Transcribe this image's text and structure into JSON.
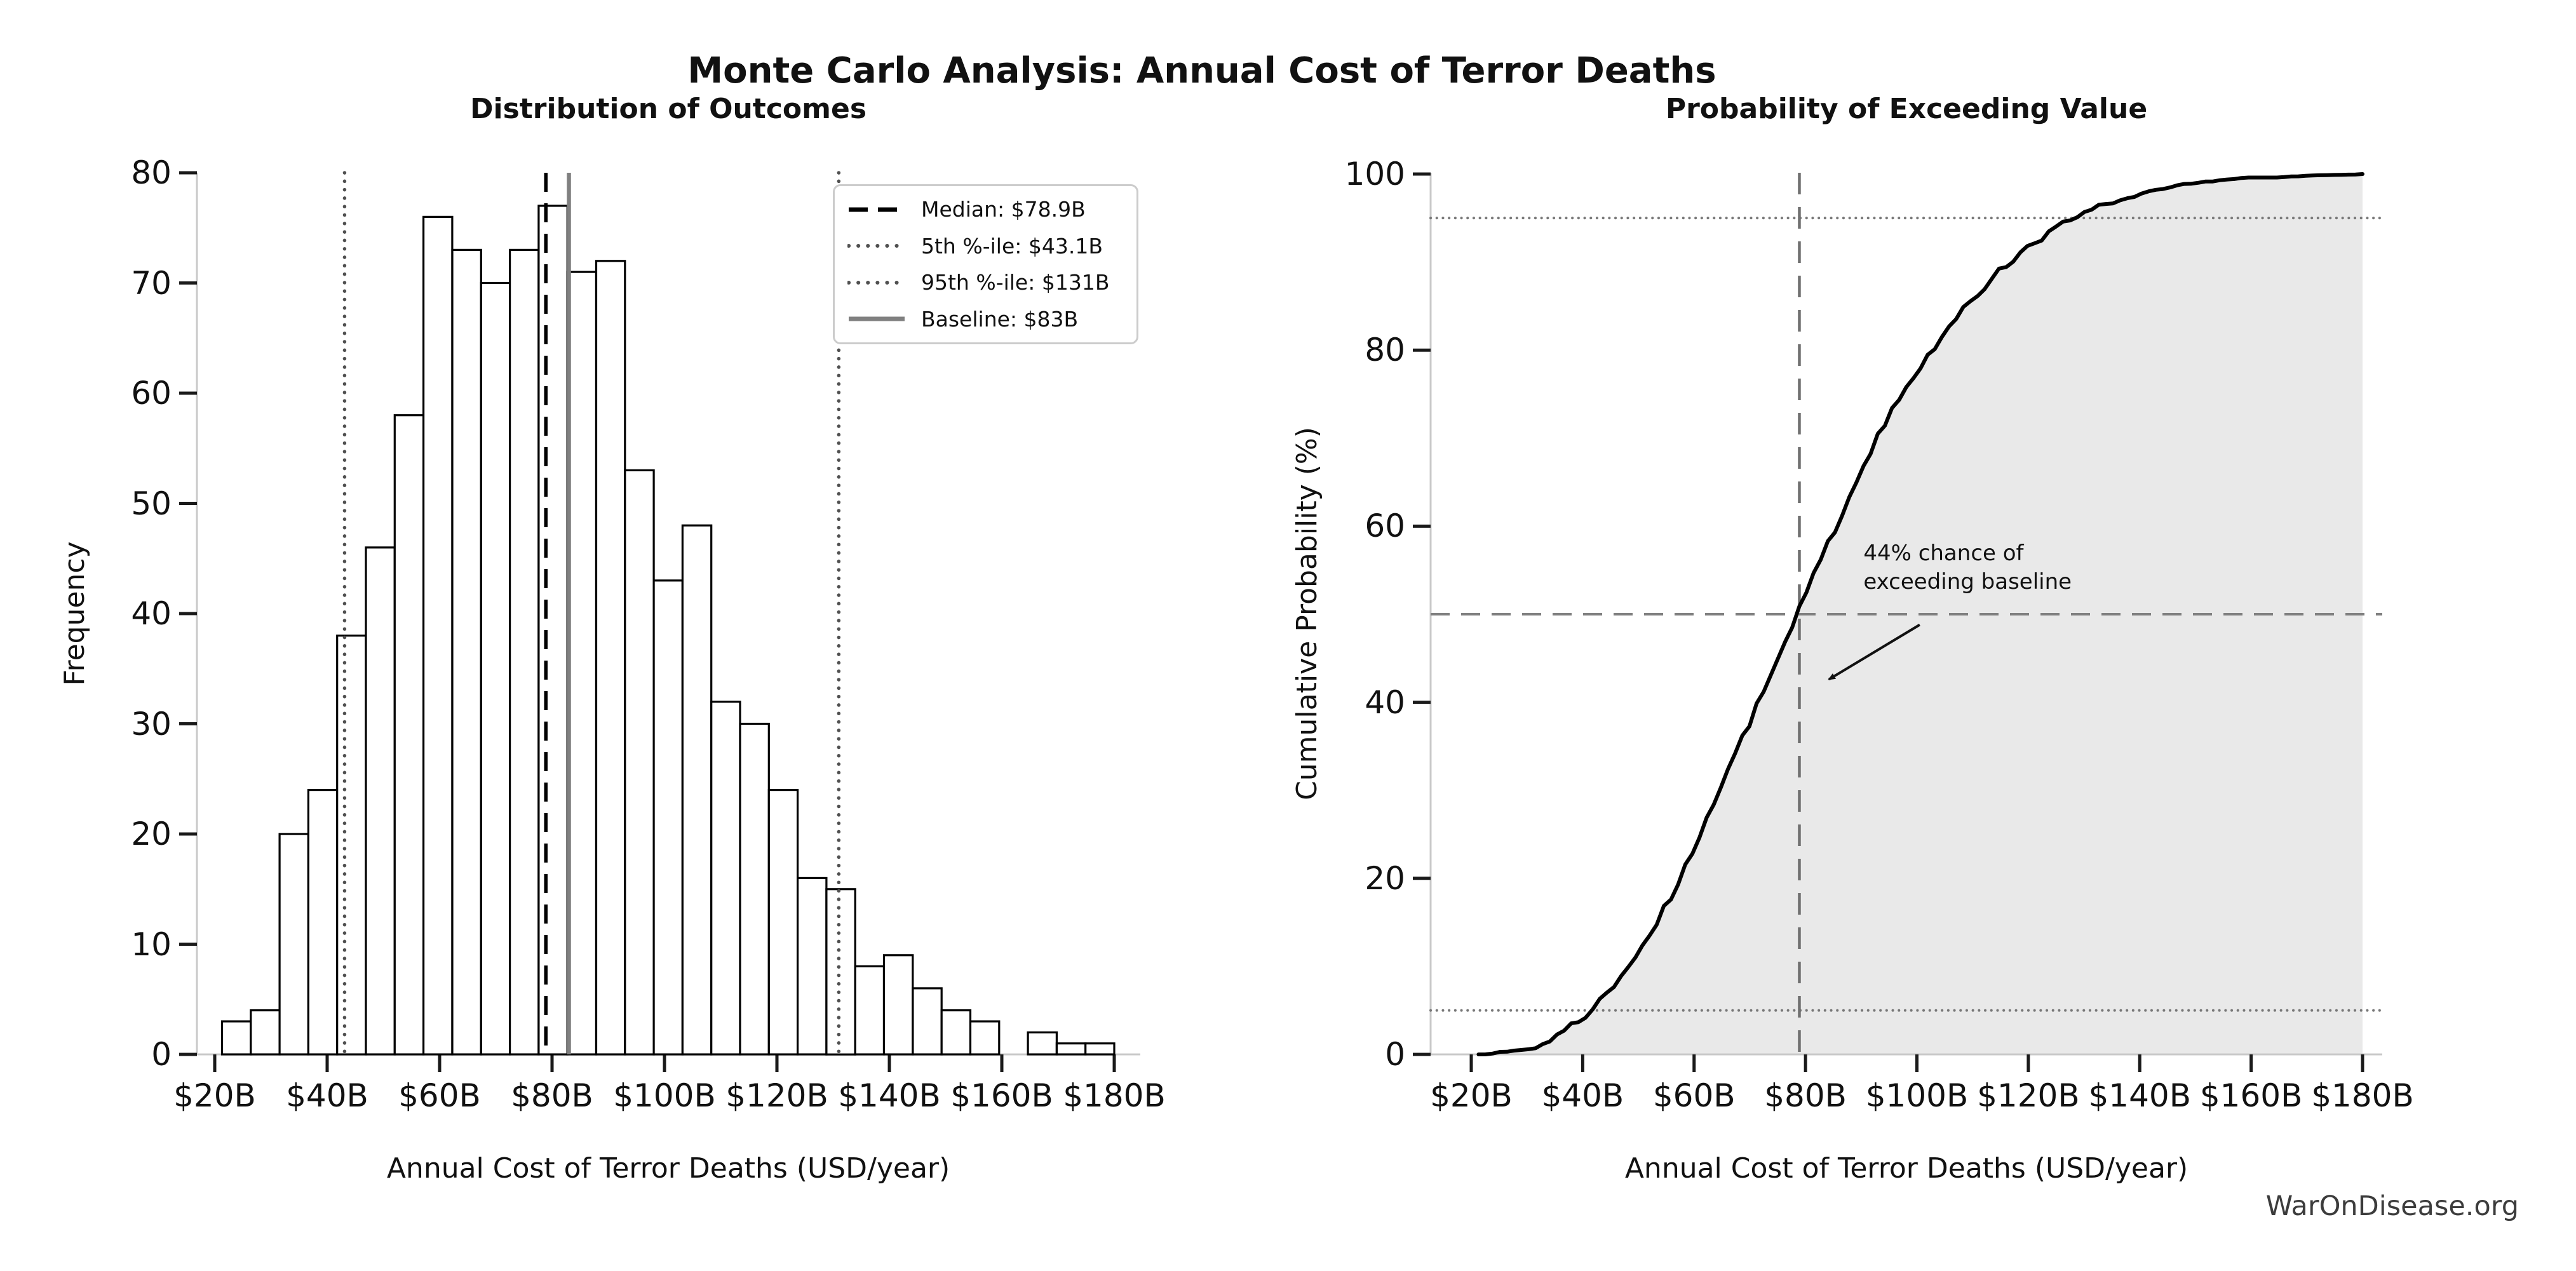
{
  "header": {
    "title": "Monte Carlo Analysis: Annual Cost of Terror Deaths"
  },
  "footer": {
    "watermark": "WarOnDisease.org"
  },
  "colors": {
    "bar_fill": "#ffffff",
    "bar_edge": "#000000",
    "median_line": "#000000",
    "percentile_line": "#505050",
    "baseline_line": "#808080",
    "guide_line": "#808080",
    "curve": "#000000",
    "cdf_fill": "#e9e9e9",
    "spine": "#c9c9c9",
    "tick": "#1a1a1a",
    "text": "#111111"
  },
  "chart_data": [
    {
      "type": "bar",
      "title": "Distribution of Outcomes",
      "xlabel": "Annual Cost of Terror Deaths (USD/year)",
      "ylabel": "Frequency",
      "bin_start": 21.3,
      "bin_end": 180.0,
      "counts": [
        3,
        4,
        20,
        24,
        38,
        46,
        58,
        76,
        73,
        70,
        73,
        77,
        71,
        72,
        53,
        43,
        48,
        32,
        30,
        24,
        16,
        15,
        8,
        9,
        6,
        4,
        3,
        0,
        2,
        1,
        1
      ],
      "total_samples": 1000,
      "xticks": [
        20,
        40,
        60,
        80,
        100,
        120,
        140,
        160,
        180
      ],
      "xtick_labels": [
        "$20B",
        "$40B",
        "$60B",
        "$80B",
        "$100B",
        "$120B",
        "$140B",
        "$160B",
        "$180B"
      ],
      "yticks": [
        0,
        10,
        20,
        30,
        40,
        50,
        60,
        70,
        80
      ],
      "ylim": [
        0,
        80
      ],
      "grid": false,
      "vlines": [
        {
          "name": "median",
          "value": 78.9,
          "style": "dashed",
          "color": "#000000",
          "width": 5.5
        },
        {
          "name": "pct5",
          "value": 43.1,
          "style": "dotted",
          "color": "#505050",
          "width": 5.5
        },
        {
          "name": "pct95",
          "value": 131,
          "style": "dotted",
          "color": "#505050",
          "width": 5.5
        },
        {
          "name": "baseline",
          "value": 83,
          "style": "solid",
          "color": "#808080",
          "width": 6.5
        }
      ],
      "legend_position": "upper right",
      "legend": [
        {
          "label": "Median: $78.9B",
          "style": "dashed",
          "color": "#000000"
        },
        {
          "label": "5th %-ile: $43.1B",
          "style": "dotted",
          "color": "#505050"
        },
        {
          "label": "95th %-ile: $131B",
          "style": "dotted",
          "color": "#505050"
        },
        {
          "label": "Baseline: $83B",
          "style": "solid",
          "color": "#808080"
        }
      ]
    },
    {
      "type": "line",
      "title": "Probability of Exceeding Value",
      "xlabel": "Annual Cost of Terror Deaths (USD/year)",
      "ylabel": "Cumulative Probability (%)",
      "x_start": 21.3,
      "x_end": 180.0,
      "cumulative_pct": [
        0,
        0.3,
        0.7,
        2.7,
        5.1,
        8.9,
        13.5,
        19.3,
        26.9,
        34.2,
        41.2,
        48.5,
        56.2,
        63.3,
        70.5,
        75.8,
        80.1,
        84.9,
        88.1,
        91.1,
        93.5,
        95.1,
        96.6,
        97.4,
        98.3,
        98.9,
        99.3,
        99.6,
        99.6,
        99.8,
        99.9,
        100
      ],
      "fill_under_curve": true,
      "xticks": [
        20,
        40,
        60,
        80,
        100,
        120,
        140,
        160,
        180
      ],
      "xtick_labels": [
        "$20B",
        "$40B",
        "$60B",
        "$80B",
        "$100B",
        "$120B",
        "$140B",
        "$160B",
        "$180B"
      ],
      "yticks": [
        0,
        20,
        40,
        60,
        80,
        100
      ],
      "ylim": [
        0,
        100
      ],
      "grid": false,
      "hlines": [
        {
          "name": "pct5-line",
          "value": 5,
          "style": "dotted",
          "color": "#787878",
          "width": 4
        },
        {
          "name": "median-line",
          "value": 50,
          "style": "dashed",
          "color": "#808080",
          "width": 4
        },
        {
          "name": "pct95-line",
          "value": 95,
          "style": "dotted",
          "color": "#787878",
          "width": 4
        }
      ],
      "vlines": [
        {
          "name": "median-vline",
          "value": 78.9,
          "style": "dashed",
          "color": "#707070",
          "width": 4.5
        }
      ],
      "annotation": {
        "line1": "44% chance of",
        "line2": "exceeding baseline",
        "text_x_bil": 90.4,
        "text_y_pct": 58.5,
        "arrow_from": [
          100.5,
          48.8
        ],
        "arrow_to": [
          84.2,
          42.6
        ]
      }
    }
  ]
}
